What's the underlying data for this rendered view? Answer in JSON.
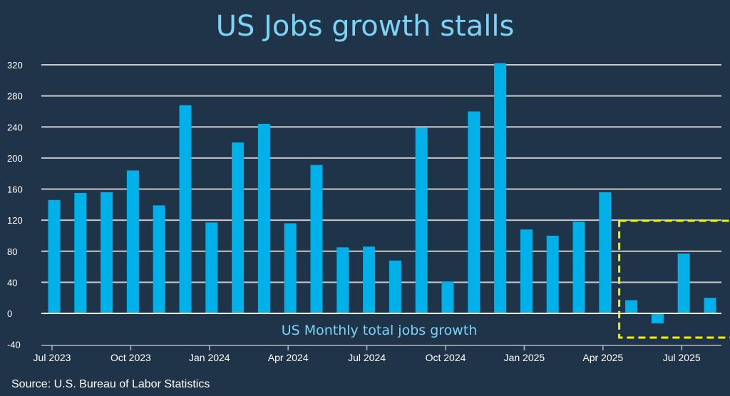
{
  "chart_data": {
    "type": "bar",
    "title": "US Jobs growth stalls",
    "series_label": "US Monthly total jobs growth",
    "source": "Source: U.S. Bureau of Labor Statistics",
    "categories": [
      "Jul 2023",
      "Aug 2023",
      "Sep 2023",
      "Oct 2023",
      "Nov 2023",
      "Dec 2023",
      "Jan 2024",
      "Feb 2024",
      "Mar 2024",
      "Apr 2024",
      "May 2024",
      "Jun 2024",
      "Jul 2024",
      "Aug 2024",
      "Sep 2024",
      "Oct 2024",
      "Nov 2024",
      "Dec 2024",
      "Jan 2025",
      "Feb 2025",
      "Mar 2025",
      "Apr 2025",
      "May 2025",
      "Jun 2025",
      "Jul 2025",
      "Aug 2025"
    ],
    "values": [
      146,
      155,
      156,
      184,
      139,
      268,
      117,
      220,
      244,
      116,
      191,
      85,
      86,
      68,
      239,
      41,
      260,
      322,
      108,
      100,
      118,
      156,
      17,
      -13,
      77,
      20
    ],
    "x_tick_labels": [
      "Jul 2023",
      "Oct 2023",
      "Jan 2024",
      "Apr 2024",
      "Jul 2024",
      "Oct 2024",
      "Jan 2025",
      "Apr 2025",
      "Jul 2025"
    ],
    "y_ticks": [
      -40,
      0,
      40,
      80,
      120,
      160,
      200,
      240,
      280,
      320
    ],
    "ylim": [
      -40,
      320
    ],
    "grid": true,
    "highlight": {
      "from": "May 2025",
      "to": "Aug 2025",
      "style": "dashed box",
      "color": "#f2f200"
    },
    "colors": {
      "bar": "#00b0e8",
      "background": "#1f3448",
      "title": "#7dd3f5",
      "grid": "#c8c8c8"
    }
  }
}
